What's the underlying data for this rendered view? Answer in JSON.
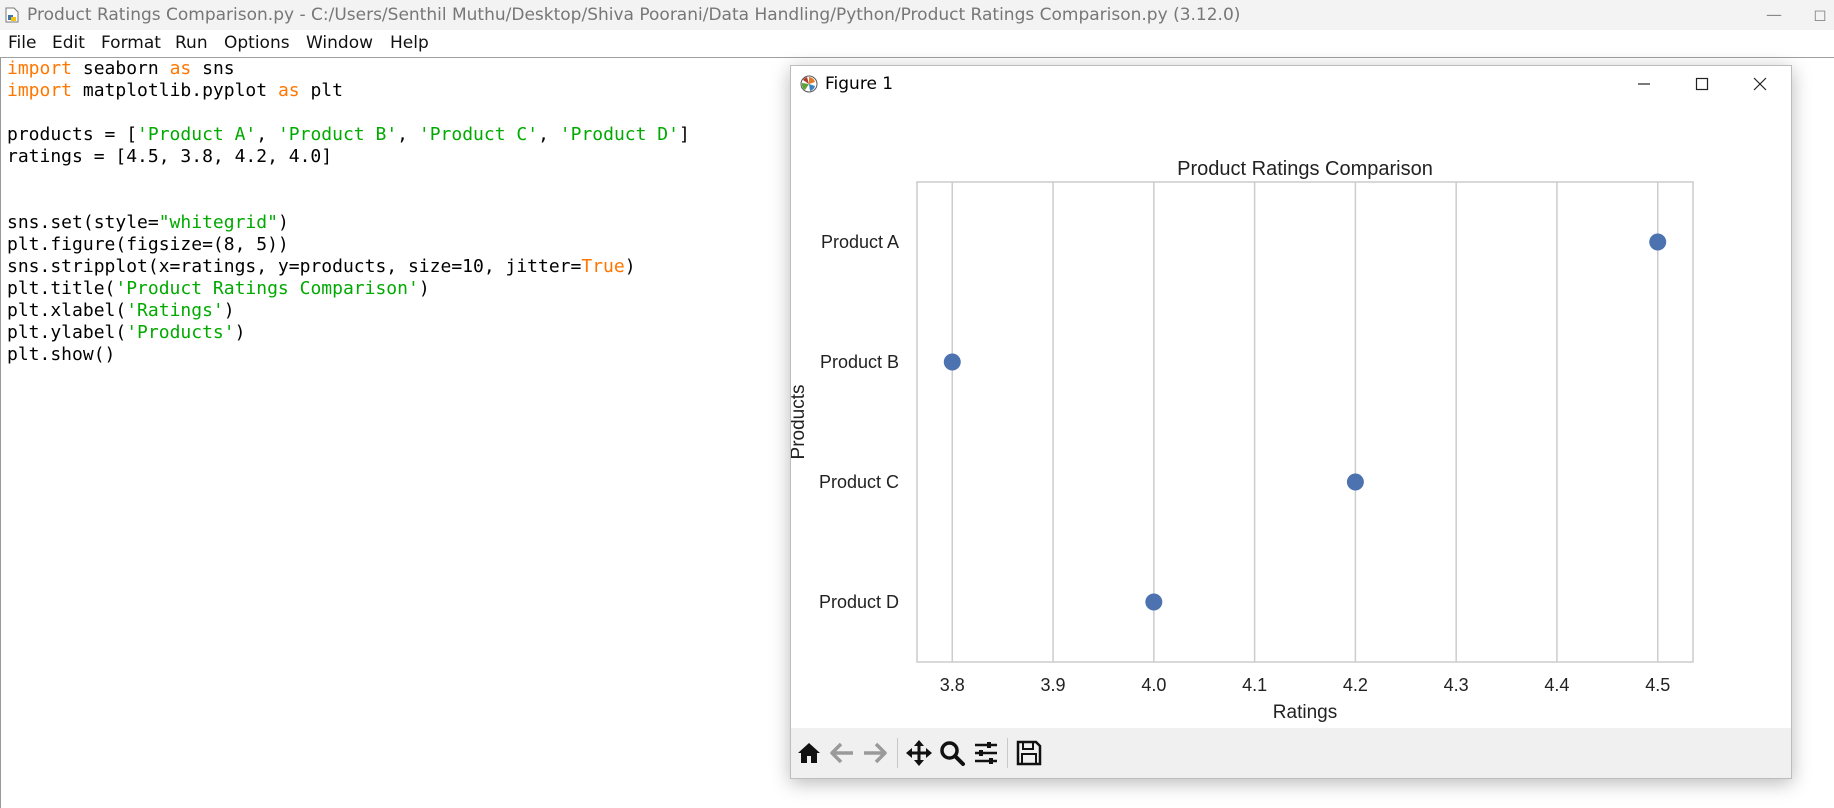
{
  "idle_window": {
    "title": "Product Ratings Comparison.py - C:/Users/Senthil Muthu/Desktop/Shiva Poorani/Data Handling/Python/Product Ratings Comparison.py (3.12.0)",
    "minimize_symbol": "—",
    "restore_symbol": "◻",
    "menu": [
      "File",
      "Edit",
      "Format",
      "Run",
      "Options",
      "Window",
      "Help"
    ]
  },
  "code": [
    [
      [
        "kw",
        "import"
      ],
      [
        "t",
        " seaborn "
      ],
      [
        "kw",
        "as"
      ],
      [
        "t",
        " sns"
      ]
    ],
    [
      [
        "kw",
        "import"
      ],
      [
        "t",
        " matplotlib.pyplot "
      ],
      [
        "kw",
        "as"
      ],
      [
        "t",
        " plt"
      ]
    ],
    [],
    [
      [
        "t",
        "products = ["
      ],
      [
        "str",
        "'Product A'"
      ],
      [
        "t",
        ", "
      ],
      [
        "str",
        "'Product B'"
      ],
      [
        "t",
        ", "
      ],
      [
        "str",
        "'Product C'"
      ],
      [
        "t",
        ", "
      ],
      [
        "str",
        "'Product D'"
      ],
      [
        "t",
        "]"
      ]
    ],
    [
      [
        "t",
        "ratings = [4.5, 3.8, 4.2, 4.0]"
      ]
    ],
    [],
    [],
    [
      [
        "t",
        "sns.set(style="
      ],
      [
        "str",
        "\"whitegrid\""
      ],
      [
        "t",
        ")"
      ]
    ],
    [
      [
        "t",
        "plt.figure(figsize=(8, 5))"
      ]
    ],
    [
      [
        "t",
        "sns.stripplot(x=ratings, y=products, size=10, jitter="
      ],
      [
        "kw",
        "True"
      ],
      [
        "t",
        ")"
      ]
    ],
    [
      [
        "t",
        "plt.title("
      ],
      [
        "str",
        "'Product Ratings Comparison'"
      ],
      [
        "t",
        ")"
      ]
    ],
    [
      [
        "t",
        "plt.xlabel("
      ],
      [
        "str",
        "'Ratings'"
      ],
      [
        "t",
        ")"
      ]
    ],
    [
      [
        "t",
        "plt.ylabel("
      ],
      [
        "str",
        "'Products'"
      ],
      [
        "t",
        ")"
      ]
    ],
    [
      [
        "t",
        "plt.show()"
      ]
    ]
  ],
  "figure_window": {
    "title": "Figure 1",
    "toolbar_icons": [
      "home-icon",
      "back-icon",
      "forward-icon",
      "pan-icon",
      "zoom-icon",
      "configure-subplots-icon",
      "save-icon"
    ]
  },
  "chart_data": {
    "type": "scatter",
    "title": "Product Ratings Comparison",
    "xlabel": "Ratings",
    "ylabel": "Products",
    "categories": [
      "Product A",
      "Product B",
      "Product C",
      "Product D"
    ],
    "values": [
      4.5,
      3.8,
      4.2,
      4.0
    ],
    "xlim": [
      3.765,
      4.535
    ],
    "xticks": [
      "3.8",
      "3.9",
      "4.0",
      "4.1",
      "4.2",
      "4.3",
      "4.4",
      "4.5"
    ],
    "grid": true,
    "marker_color": "#4c72b0"
  }
}
